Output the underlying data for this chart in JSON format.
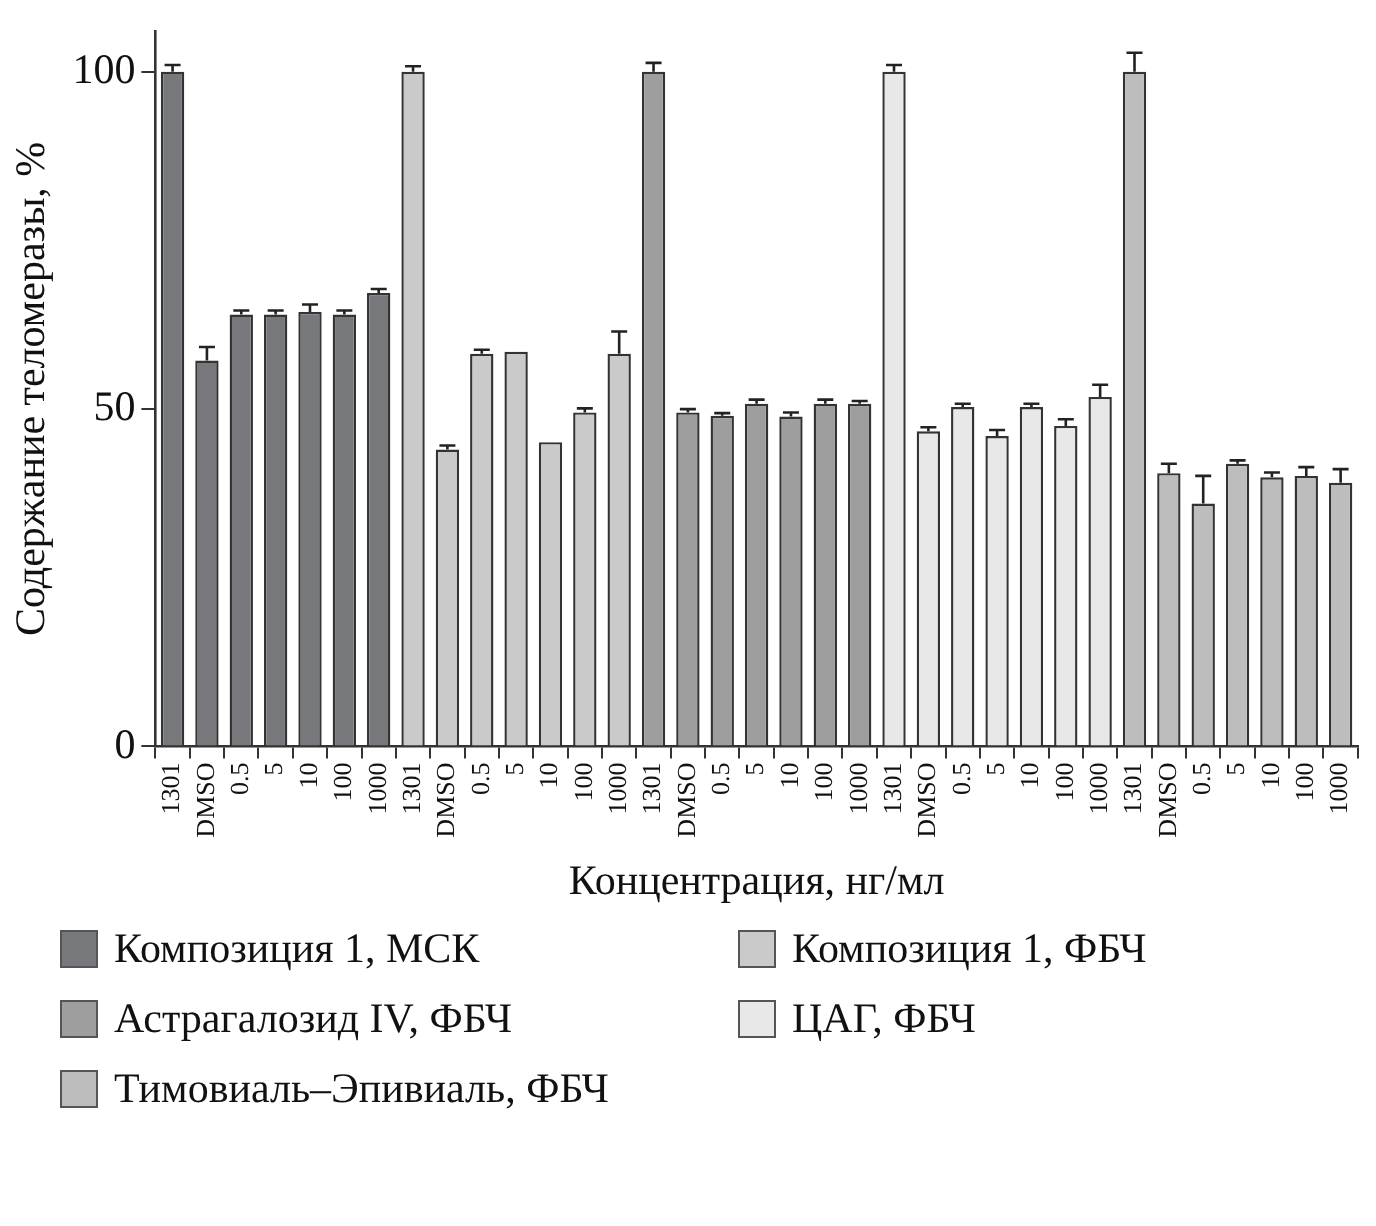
{
  "chart_data": {
    "type": "bar",
    "xlabel": "Концентрация, нг/мл",
    "ylabel": "Содержание теломеразы, %",
    "categories": [
      "1301",
      "DMSO",
      "0.5",
      "5",
      "10",
      "100",
      "1000",
      "1301",
      "DMSO",
      "0.5",
      "5",
      "10",
      "100",
      "1000",
      "1301",
      "DMSO",
      "0.5",
      "5",
      "10",
      "100",
      "1000",
      "1301",
      "DMSO",
      "0.5",
      "5",
      "10",
      "100",
      "1000",
      "1301",
      "DMSO",
      "0.5",
      "5",
      "10",
      "100",
      "1000"
    ],
    "series": [
      {
        "name": "Композиция 1, МСК",
        "color": "#77787c",
        "values": [
          100,
          57.2,
          64.0,
          64.0,
          64.4,
          64.0,
          67.2,
          null,
          null,
          null,
          null,
          null,
          null,
          null,
          null,
          null,
          null,
          null,
          null,
          null,
          null,
          null,
          null,
          null,
          null,
          null,
          null,
          null,
          null,
          null,
          null,
          null,
          null,
          null,
          null
        ],
        "errors": [
          1.0,
          2.0,
          0.6,
          0.6,
          1.1,
          0.6,
          0.6,
          null,
          null,
          null,
          null,
          null,
          null,
          null,
          null,
          null,
          null,
          null,
          null,
          null,
          null,
          null,
          null,
          null,
          null,
          null,
          null,
          null,
          null,
          null,
          null,
          null,
          null,
          null,
          null
        ]
      },
      {
        "name": "Композиция 1, ФБЧ",
        "color": "#cacaca",
        "values": [
          null,
          null,
          null,
          null,
          null,
          null,
          null,
          100,
          44.0,
          58.2,
          58.5,
          45.1,
          49.5,
          58.2,
          null,
          null,
          null,
          null,
          null,
          null,
          null,
          null,
          null,
          null,
          null,
          null,
          null,
          null,
          null,
          null,
          null,
          null,
          null,
          null,
          null
        ],
        "errors": [
          null,
          null,
          null,
          null,
          null,
          null,
          null,
          0.8,
          0.6,
          0.6,
          null,
          null,
          0.6,
          3.3,
          null,
          null,
          null,
          null,
          null,
          null,
          null,
          null,
          null,
          null,
          null,
          null,
          null,
          null,
          null,
          null,
          null,
          null,
          null,
          null,
          null
        ]
      },
      {
        "name": "Астрагалозид IV, ФБЧ",
        "color": "#9e9e9e",
        "values": [
          null,
          null,
          null,
          null,
          null,
          null,
          null,
          null,
          null,
          null,
          null,
          null,
          null,
          null,
          100,
          49.5,
          49.0,
          50.8,
          48.9,
          50.8,
          50.8,
          null,
          null,
          null,
          null,
          null,
          null,
          null,
          null,
          null,
          null,
          null,
          null,
          null,
          null
        ],
        "errors": [
          null,
          null,
          null,
          null,
          null,
          null,
          null,
          null,
          null,
          null,
          null,
          null,
          null,
          null,
          1.3,
          0.5,
          0.4,
          0.6,
          0.6,
          0.6,
          0.4,
          null,
          null,
          null,
          null,
          null,
          null,
          null,
          null,
          null,
          null,
          null,
          null,
          null,
          null
        ]
      },
      {
        "name": "ЦАГ, ФБЧ",
        "color": "#e8e8e8",
        "values": [
          null,
          null,
          null,
          null,
          null,
          null,
          null,
          null,
          null,
          null,
          null,
          null,
          null,
          null,
          null,
          null,
          null,
          null,
          null,
          null,
          null,
          100,
          46.7,
          50.3,
          46.0,
          50.3,
          47.5,
          51.8,
          null,
          null,
          null,
          null,
          null,
          null,
          null
        ],
        "errors": [
          null,
          null,
          null,
          null,
          null,
          null,
          null,
          null,
          null,
          null,
          null,
          null,
          null,
          null,
          null,
          null,
          null,
          null,
          null,
          null,
          null,
          1.0,
          0.6,
          0.5,
          0.9,
          0.5,
          1.0,
          1.8,
          null,
          null,
          null,
          null,
          null,
          null,
          null
        ]
      },
      {
        "name": "Тимовиаль–Эпивиаль, ФБЧ",
        "color": "#bdbdbd",
        "values": [
          null,
          null,
          null,
          null,
          null,
          null,
          null,
          null,
          null,
          null,
          null,
          null,
          null,
          null,
          null,
          null,
          null,
          null,
          null,
          null,
          null,
          null,
          null,
          null,
          null,
          null,
          null,
          null,
          100,
          40.5,
          36.0,
          41.9,
          39.9,
          40.1,
          39.1
        ],
        "errors": [
          null,
          null,
          null,
          null,
          null,
          null,
          null,
          null,
          null,
          null,
          null,
          null,
          null,
          null,
          null,
          null,
          null,
          null,
          null,
          null,
          null,
          null,
          null,
          null,
          null,
          null,
          null,
          null,
          2.8,
          1.4,
          4.1,
          0.5,
          0.7,
          1.3,
          2.0
        ]
      }
    ],
    "ylim": [
      0,
      106
    ],
    "yticks": [
      0,
      50,
      100
    ],
    "grid": false,
    "legend": "bottom"
  }
}
